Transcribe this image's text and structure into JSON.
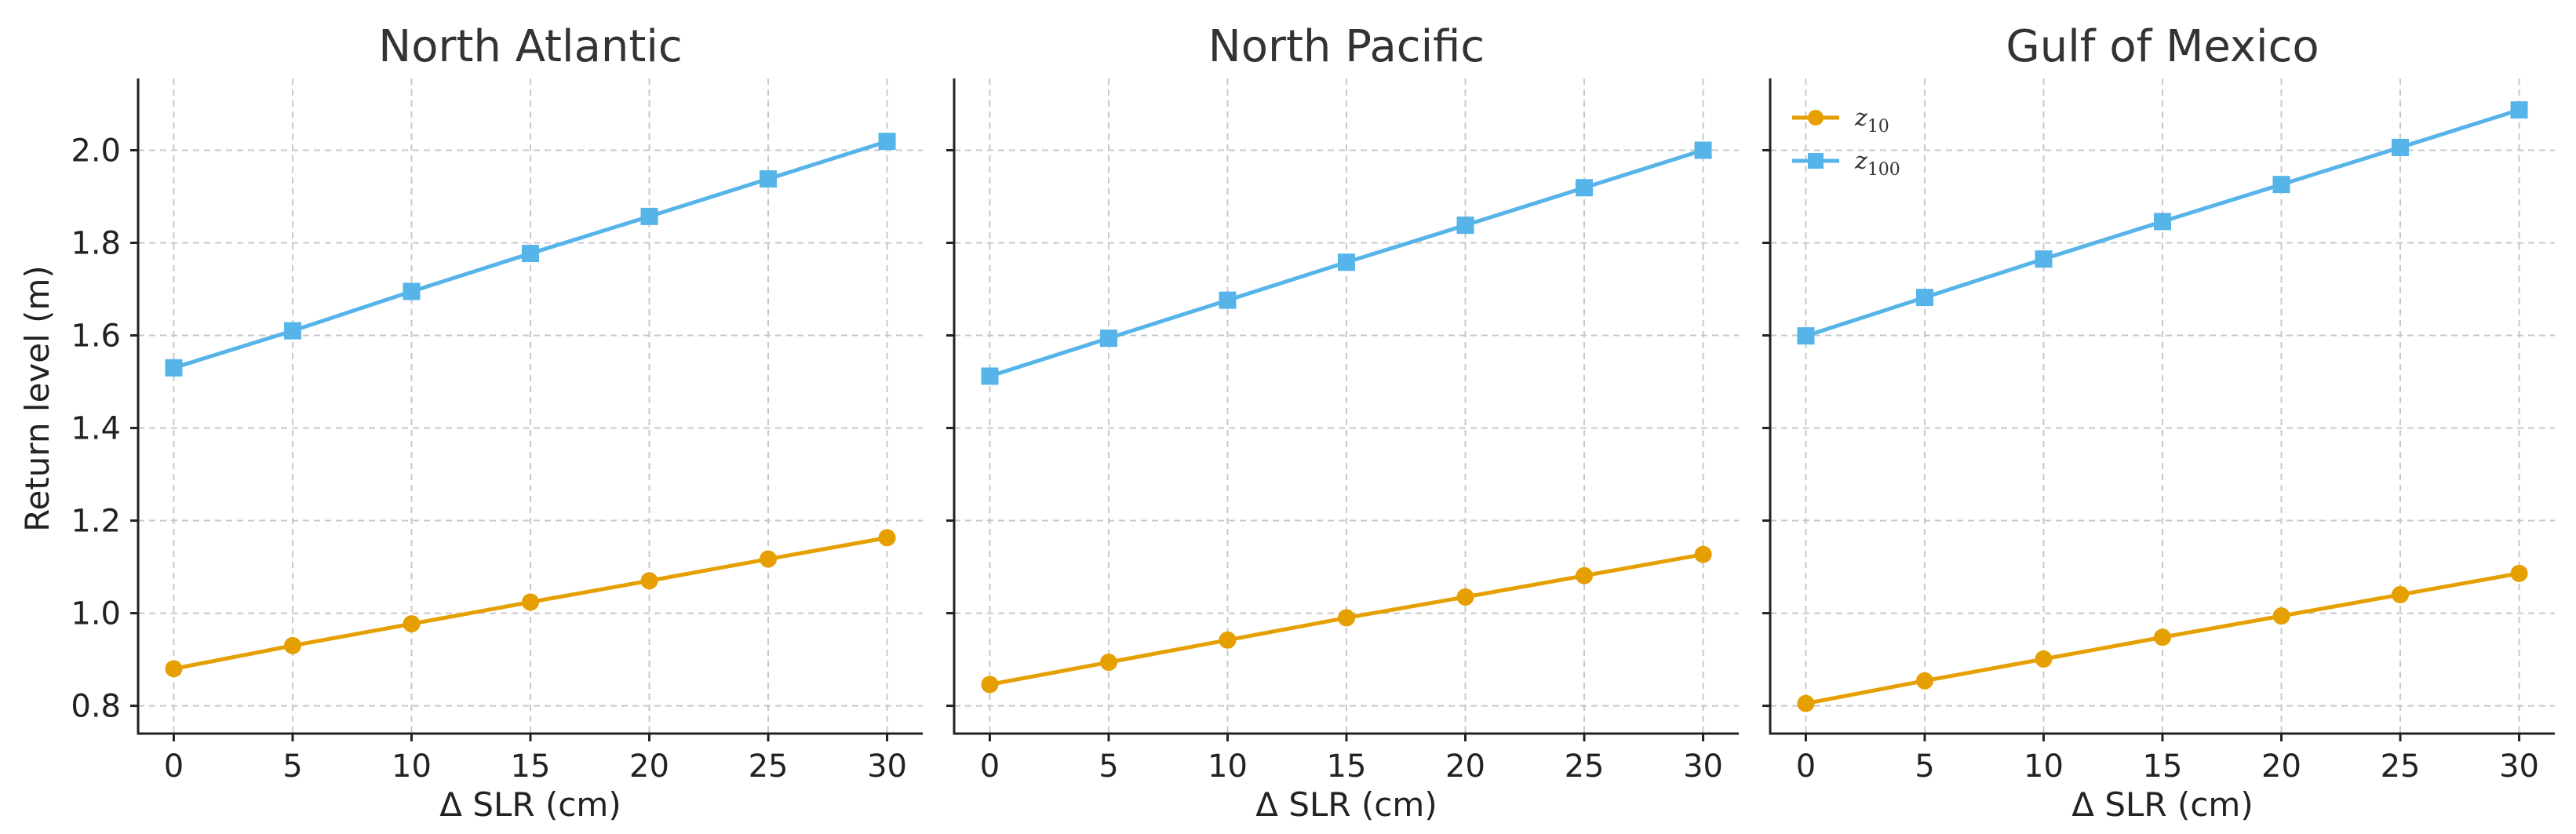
{
  "chart_data": {
    "type": "line",
    "shared": {
      "x": [
        0,
        5,
        10,
        15,
        20,
        25,
        30
      ],
      "xlim": [
        -1.5,
        31.5
      ],
      "ylim": [
        0.74,
        2.155
      ],
      "xticks": [
        0,
        5,
        10,
        15,
        20,
        25,
        30
      ],
      "yticks": [
        0.8,
        1.0,
        1.2,
        1.4,
        1.6,
        1.8,
        2.0
      ],
      "xlabel": "Δ SLR (cm)",
      "ylabel": "Return level (m)",
      "grid": true,
      "legend_position": "upper-left",
      "colors": {
        "z10": "#E69F00",
        "z100": "#56B4E9"
      }
    },
    "panels": [
      {
        "title": "North Atlantic",
        "series": [
          {
            "name": "z10",
            "values": [
              0.88,
              0.93,
              0.977,
              1.024,
              1.07,
              1.117,
              1.163
            ]
          },
          {
            "name": "z100",
            "values": [
              1.53,
              1.61,
              1.695,
              1.777,
              1.857,
              1.938,
              2.019
            ]
          }
        ]
      },
      {
        "title": "North Pacific",
        "series": [
          {
            "name": "z10",
            "values": [
              0.846,
              0.894,
              0.942,
              0.99,
              1.035,
              1.081,
              1.127
            ]
          },
          {
            "name": "z100",
            "values": [
              1.512,
              1.594,
              1.676,
              1.758,
              1.838,
              1.919,
              2.0
            ]
          }
        ]
      },
      {
        "title": "Gulf of Mexico",
        "series": [
          {
            "name": "z10",
            "values": [
              0.805,
              0.854,
              0.901,
              0.948,
              0.994,
              1.04,
              1.086
            ]
          },
          {
            "name": "z100",
            "values": [
              1.599,
              1.682,
              1.765,
              1.846,
              1.926,
              2.006,
              2.087
            ]
          }
        ]
      }
    ],
    "legend": [
      {
        "key": "z10",
        "base": "z",
        "sub": "10",
        "marker": "circle"
      },
      {
        "key": "z100",
        "base": "z",
        "sub": "100",
        "marker": "square"
      }
    ]
  }
}
